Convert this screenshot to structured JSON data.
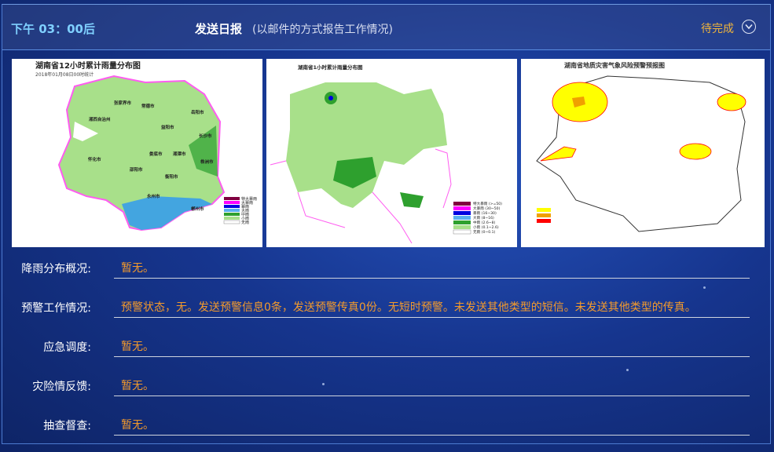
{
  "header": {
    "time": "下午 03：00后",
    "title": "发送日报",
    "subtitle": "(以邮件的方式报告工作情况)",
    "status": "待完成",
    "status_icon": "chevron-down-circle-icon"
  },
  "maps": [
    {
      "title": "湖南省12小时累计雨量分布图",
      "subtitle": "2018年01月08日00时统计",
      "legend": [
        "特大暴雨",
        "大暴雨",
        "暴雨",
        "大雨",
        "中雨",
        "小雨",
        "无雨"
      ],
      "cities": [
        "张家界市",
        "常德市",
        "岳阳市",
        "湘西自治州",
        "益阳市",
        "长沙市",
        "怀化市",
        "娄底市",
        "湘潭市",
        "株洲市",
        "邵阳市",
        "衡阳市",
        "永州市",
        "郴州市"
      ]
    },
    {
      "title": "湖南省1小时累计雨量分布图",
      "legend": [
        "特大暴雨 (>=50)",
        "大暴雨 (30~50)",
        "暴雨 (16~30)",
        "大雨 (8~16)",
        "中雨 (2.6~8)",
        "小雨 (0.1~2.6)",
        "无雨 (0~0.1)"
      ]
    },
    {
      "title": "湖南省地质灾害气象风险预警预报图"
    }
  ],
  "colors": {
    "accent": "#7fd0ff",
    "status": "#f0b43c",
    "value": "#f39a2c"
  },
  "rows": [
    {
      "label": "降雨分布概况:",
      "value": "暂无。"
    },
    {
      "label": "预警工作情况:",
      "value": "预警状态，无。发送预警信息0条，发送预警传真0份。无短时预警。未发送其他类型的短信。未发送其他类型的传真。"
    },
    {
      "label": "应急调度:",
      "value": "暂无。"
    },
    {
      "label": "灾险情反馈:",
      "value": "暂无。"
    },
    {
      "label": "抽查督查:",
      "value": "暂无。"
    }
  ]
}
